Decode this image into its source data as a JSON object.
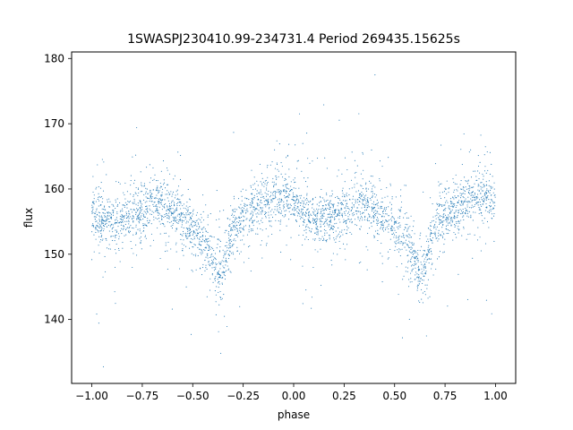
{
  "chart_data": {
    "type": "scatter",
    "title": "1SWASPJ230410.99-234731.4 Period 269435.15625s",
    "xlabel": "phase",
    "ylabel": "flux",
    "xlim": [
      -1.1,
      1.1
    ],
    "ylim": [
      130.2,
      181.0
    ],
    "xticks": [
      -1.0,
      -0.75,
      -0.5,
      -0.25,
      0.0,
      0.25,
      0.5,
      0.75,
      1.0
    ],
    "xtick_labels": [
      "−1.00",
      "−0.75",
      "−0.50",
      "−0.25",
      "0.00",
      "0.25",
      "0.50",
      "0.75",
      "1.00"
    ],
    "yticks": [
      140,
      150,
      160,
      170,
      180
    ],
    "ytick_labels": [
      "140",
      "150",
      "160",
      "170",
      "180"
    ],
    "grid": false,
    "marker_color": "#1f77b4",
    "series": [
      {
        "name": "",
        "x": [
          -1.0,
          -0.95,
          -0.9,
          -0.85,
          -0.8,
          -0.75,
          -0.7,
          -0.65,
          -0.6,
          -0.55,
          -0.5,
          -0.45,
          -0.42,
          -0.4,
          -0.38,
          -0.36,
          -0.34,
          -0.32,
          -0.3,
          -0.25,
          -0.2,
          -0.15,
          -0.1,
          -0.05,
          0.0,
          0.05,
          0.1,
          0.15,
          0.2,
          0.25,
          0.3,
          0.35,
          0.4,
          0.45,
          0.5,
          0.55,
          0.58,
          0.6,
          0.62,
          0.64,
          0.66,
          0.68,
          0.7,
          0.75,
          0.8,
          0.85,
          0.9,
          0.95,
          1.0
        ],
        "y": [
          156.0,
          155.5,
          155.0,
          155.2,
          155.8,
          157.0,
          158.0,
          157.8,
          156.8,
          155.2,
          153.5,
          152.0,
          150.5,
          149.0,
          147.5,
          147.0,
          149.0,
          152.0,
          154.0,
          155.5,
          156.8,
          158.0,
          159.0,
          158.8,
          158.0,
          156.5,
          155.0,
          155.2,
          155.8,
          157.0,
          158.0,
          157.8,
          156.8,
          155.2,
          153.5,
          152.0,
          150.5,
          149.0,
          147.5,
          147.0,
          149.0,
          152.0,
          154.0,
          155.5,
          156.8,
          158.0,
          159.0,
          158.8,
          158.0
        ]
      }
    ]
  }
}
